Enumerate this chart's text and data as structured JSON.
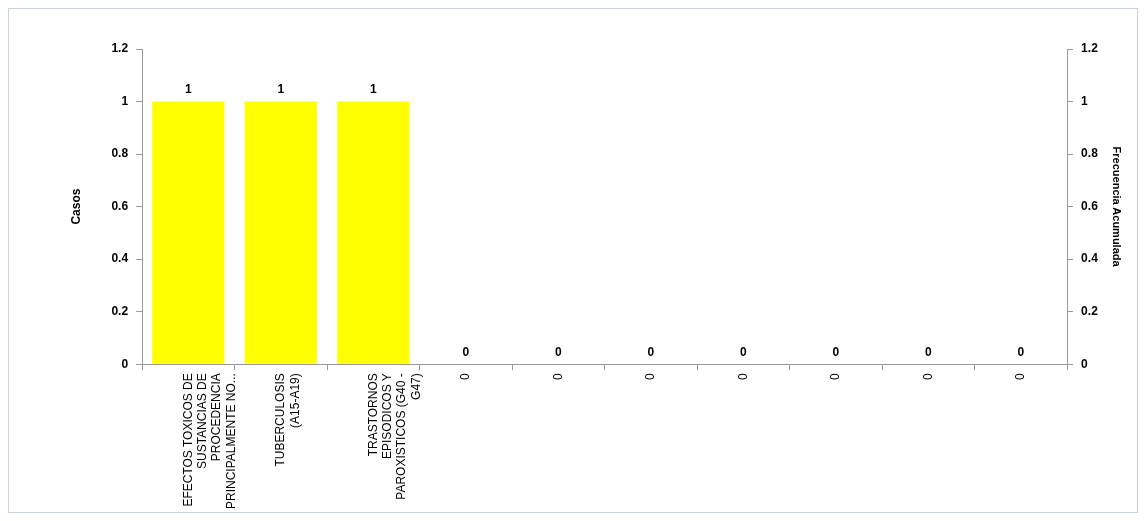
{
  "chart_data": {
    "type": "bar",
    "ylabel": "Casos",
    "y2label": "Frecuencia Acumulada",
    "categories": [
      "EFECTOS TOXICOS DE SUSTANCIAS DE PROCEDENCIA PRINCIPALMENTE NO...",
      "TUBERCULOSIS (A15-A19)",
      "TRASTORNOS EPISODICOS Y PAROXISTICOS (G40 - G47)",
      "0",
      "0",
      "0",
      "0",
      "0",
      "0",
      "0"
    ],
    "values": [
      1,
      1,
      1,
      0,
      0,
      0,
      0,
      0,
      0,
      0
    ],
    "color": "#ffff00",
    "ylim": [
      0,
      1.2
    ],
    "yticks": [
      0,
      0.2,
      0.4,
      0.6,
      0.8,
      1,
      1.2
    ],
    "y2lim": [
      0,
      1.2
    ],
    "y2ticks": [
      0,
      0.2,
      0.4,
      0.6,
      0.8,
      1,
      1.2
    ],
    "data_labels": true,
    "grid": false,
    "legend": false
  }
}
